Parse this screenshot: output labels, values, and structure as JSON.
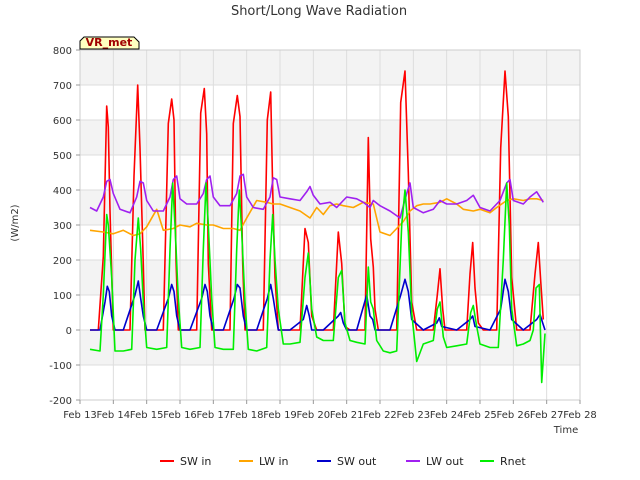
{
  "chart_data": {
    "type": "line",
    "title": "Short/Long Wave Radiation",
    "xlabel": "Time",
    "ylabel": "(W/m2)",
    "badge": "VR_met",
    "xlim": [
      13,
      28
    ],
    "ylim": [
      -200,
      800
    ],
    "x_ticks": [
      {
        "v": 13,
        "label": "Feb 13"
      },
      {
        "v": 14,
        "label": "Feb 14"
      },
      {
        "v": 15,
        "label": "Feb 15"
      },
      {
        "v": 16,
        "label": "Feb 16"
      },
      {
        "v": 17,
        "label": "Feb 17"
      },
      {
        "v": 18,
        "label": "Feb 18"
      },
      {
        "v": 19,
        "label": "Feb 19"
      },
      {
        "v": 20,
        "label": "Feb 20"
      },
      {
        "v": 21,
        "label": "Feb 21"
      },
      {
        "v": 22,
        "label": "Feb 22"
      },
      {
        "v": 23,
        "label": "Feb 23"
      },
      {
        "v": 24,
        "label": "Feb 24"
      },
      {
        "v": 25,
        "label": "Feb 25"
      },
      {
        "v": 26,
        "label": "Feb 26"
      },
      {
        "v": 27,
        "label": "Feb 27"
      },
      {
        "v": 28,
        "label": "Feb 28"
      }
    ],
    "y_ticks": [
      -200,
      -100,
      0,
      100,
      200,
      300,
      400,
      500,
      600,
      700,
      800
    ],
    "grid": true,
    "legend_position": "bottom",
    "series": [
      {
        "name": "SW in",
        "color": "#ff0000",
        "x": [
          13.3,
          13.55,
          13.7,
          13.8,
          13.85,
          13.9,
          14.0,
          14.15,
          14.3,
          14.5,
          14.62,
          14.73,
          14.8,
          14.88,
          14.95,
          15.1,
          15.3,
          15.5,
          15.65,
          15.75,
          15.82,
          15.88,
          15.95,
          16.1,
          16.3,
          16.5,
          16.62,
          16.73,
          16.8,
          16.85,
          16.95,
          17.1,
          17.3,
          17.5,
          17.6,
          17.72,
          17.8,
          17.88,
          17.95,
          18.1,
          18.3,
          18.5,
          18.62,
          18.72,
          18.78,
          18.85,
          18.95,
          19.1,
          19.3,
          19.6,
          19.75,
          19.85,
          19.95,
          20.1,
          20.3,
          20.6,
          20.75,
          20.85,
          20.95,
          21.1,
          21.3,
          21.55,
          21.65,
          21.72,
          21.8,
          21.85,
          21.95,
          22.1,
          22.3,
          22.5,
          22.62,
          22.75,
          22.85,
          22.95,
          23.1,
          23.3,
          23.6,
          23.72,
          23.8,
          23.88,
          23.95,
          24.1,
          24.3,
          24.6,
          24.7,
          24.78,
          24.85,
          24.95,
          25.1,
          25.3,
          25.5,
          25.62,
          25.75,
          25.85,
          25.95,
          26.1,
          26.3,
          26.5,
          26.65,
          26.75,
          26.82,
          26.9
        ],
        "y": [
          0,
          0,
          210,
          640,
          580,
          340,
          0,
          0,
          0,
          0,
          440,
          700,
          520,
          250,
          0,
          0,
          0,
          0,
          590,
          660,
          600,
          200,
          0,
          0,
          0,
          0,
          620,
          690,
          560,
          190,
          0,
          0,
          0,
          0,
          590,
          670,
          610,
          190,
          0,
          0,
          0,
          0,
          600,
          680,
          400,
          150,
          0,
          0,
          0,
          0,
          290,
          250,
          40,
          0,
          0,
          0,
          280,
          190,
          10,
          0,
          0,
          0,
          550,
          260,
          180,
          60,
          0,
          0,
          0,
          0,
          650,
          740,
          450,
          80,
          0,
          0,
          0,
          100,
          175,
          60,
          0,
          0,
          0,
          0,
          160,
          250,
          120,
          20,
          0,
          0,
          0,
          520,
          740,
          610,
          150,
          0,
          0,
          0,
          160,
          250,
          140,
          30
        ]
      },
      {
        "name": "LW in",
        "color": "#ffa500",
        "x": [
          13.3,
          13.7,
          14.0,
          14.3,
          14.6,
          14.8,
          15.0,
          15.3,
          15.5,
          15.8,
          16.0,
          16.3,
          16.5,
          16.8,
          17.0,
          17.3,
          17.6,
          17.8,
          18.0,
          18.3,
          18.6,
          18.8,
          19.0,
          19.3,
          19.6,
          19.9,
          20.1,
          20.3,
          20.5,
          20.7,
          20.9,
          21.2,
          21.5,
          21.8,
          22.0,
          22.3,
          22.5,
          22.7,
          22.9,
          23.1,
          23.3,
          23.5,
          23.8,
          24.0,
          24.3,
          24.5,
          24.8,
          25.0,
          25.3,
          25.5,
          25.8,
          26.0,
          26.3,
          26.5,
          26.7,
          26.9
        ],
        "y": [
          285,
          280,
          275,
          285,
          270,
          275,
          295,
          345,
          285,
          290,
          300,
          295,
          305,
          300,
          300,
          290,
          290,
          285,
          320,
          370,
          365,
          360,
          360,
          350,
          340,
          320,
          350,
          330,
          355,
          360,
          355,
          350,
          365,
          360,
          280,
          270,
          290,
          310,
          340,
          355,
          360,
          360,
          365,
          375,
          360,
          345,
          340,
          345,
          335,
          350,
          370,
          375,
          370,
          375,
          375,
          370
        ]
      },
      {
        "name": "SW out",
        "color": "#0000cc",
        "x": [
          13.3,
          13.6,
          13.75,
          13.82,
          13.88,
          13.95,
          14.05,
          14.3,
          14.65,
          14.75,
          14.82,
          14.9,
          15.0,
          15.3,
          15.65,
          15.75,
          15.82,
          15.9,
          16.0,
          16.3,
          16.65,
          16.75,
          16.82,
          16.9,
          17.0,
          17.3,
          17.62,
          17.72,
          17.8,
          17.9,
          18.0,
          18.3,
          18.62,
          18.72,
          18.8,
          18.88,
          18.95,
          19.3,
          19.7,
          19.8,
          19.88,
          19.95,
          20.3,
          20.75,
          20.82,
          20.9,
          21.0,
          21.3,
          21.6,
          21.7,
          21.78,
          21.85,
          22.0,
          22.3,
          22.62,
          22.75,
          22.85,
          22.95,
          23.3,
          23.7,
          23.78,
          23.85,
          24.3,
          24.7,
          24.78,
          24.85,
          25.3,
          25.62,
          25.75,
          25.85,
          25.95,
          26.3,
          26.7,
          26.8,
          26.88,
          26.95
        ],
        "y": [
          0,
          0,
          80,
          125,
          110,
          40,
          0,
          0,
          100,
          140,
          90,
          40,
          0,
          0,
          90,
          130,
          110,
          40,
          0,
          0,
          90,
          130,
          110,
          40,
          0,
          0,
          90,
          130,
          120,
          40,
          0,
          0,
          90,
          130,
          90,
          40,
          0,
          0,
          30,
          70,
          40,
          0,
          0,
          40,
          50,
          20,
          0,
          0,
          100,
          40,
          30,
          0,
          0,
          0,
          100,
          145,
          110,
          30,
          0,
          20,
          35,
          10,
          0,
          30,
          40,
          10,
          0,
          60,
          145,
          110,
          30,
          0,
          30,
          45,
          20,
          0
        ]
      },
      {
        "name": "LW out",
        "color": "#a020f0",
        "x": [
          13.3,
          13.5,
          13.7,
          13.8,
          13.9,
          14.0,
          14.2,
          14.5,
          14.7,
          14.8,
          14.9,
          15.0,
          15.2,
          15.5,
          15.7,
          15.8,
          15.9,
          16.0,
          16.2,
          16.5,
          16.7,
          16.8,
          16.9,
          17.0,
          17.2,
          17.5,
          17.7,
          17.8,
          17.9,
          18.0,
          18.2,
          18.5,
          18.7,
          18.8,
          18.9,
          19.0,
          19.3,
          19.6,
          19.8,
          19.9,
          20.0,
          20.2,
          20.5,
          20.7,
          20.9,
          21.0,
          21.3,
          21.5,
          21.7,
          21.8,
          22.0,
          22.3,
          22.6,
          22.8,
          22.9,
          23.0,
          23.3,
          23.6,
          23.8,
          24.0,
          24.3,
          24.6,
          24.8,
          25.0,
          25.3,
          25.6,
          25.8,
          25.9,
          26.0,
          26.3,
          26.5,
          26.7,
          26.9
        ],
        "y": [
          350,
          340,
          380,
          425,
          430,
          390,
          345,
          335,
          380,
          425,
          420,
          370,
          340,
          340,
          380,
          430,
          440,
          375,
          360,
          360,
          390,
          430,
          440,
          380,
          355,
          355,
          390,
          440,
          445,
          380,
          350,
          345,
          380,
          435,
          430,
          380,
          375,
          370,
          395,
          410,
          385,
          360,
          365,
          350,
          370,
          380,
          375,
          365,
          350,
          370,
          355,
          340,
          320,
          390,
          420,
          350,
          335,
          345,
          370,
          360,
          360,
          370,
          385,
          350,
          340,
          370,
          420,
          430,
          370,
          360,
          380,
          395,
          365
        ]
      },
      {
        "name": "Rnet",
        "color": "#00ee00",
        "x": [
          13.3,
          13.6,
          13.7,
          13.8,
          13.85,
          13.95,
          14.05,
          14.3,
          14.55,
          14.65,
          14.75,
          14.82,
          14.9,
          15.0,
          15.3,
          15.6,
          15.7,
          15.78,
          15.85,
          15.95,
          16.05,
          16.3,
          16.6,
          16.7,
          16.78,
          16.85,
          16.95,
          17.05,
          17.3,
          17.6,
          17.7,
          17.78,
          17.85,
          17.95,
          18.05,
          18.3,
          18.6,
          18.7,
          18.78,
          18.85,
          18.95,
          19.1,
          19.3,
          19.6,
          19.75,
          19.85,
          19.95,
          20.1,
          20.3,
          20.6,
          20.75,
          20.85,
          20.95,
          21.1,
          21.3,
          21.55,
          21.65,
          21.72,
          21.8,
          21.9,
          22.1,
          22.3,
          22.5,
          22.65,
          22.75,
          22.85,
          22.95,
          23.1,
          23.3,
          23.6,
          23.72,
          23.8,
          23.9,
          24.0,
          24.3,
          24.6,
          24.72,
          24.8,
          24.9,
          25.0,
          25.3,
          25.55,
          25.7,
          25.8,
          25.88,
          25.95,
          26.1,
          26.3,
          26.5,
          26.6,
          26.68,
          26.78,
          26.85,
          26.95
        ],
        "y": [
          -55,
          -60,
          100,
          330,
          300,
          150,
          -60,
          -60,
          -55,
          200,
          320,
          230,
          80,
          -50,
          -55,
          -50,
          230,
          420,
          300,
          90,
          -50,
          -55,
          -50,
          230,
          420,
          300,
          90,
          -50,
          -55,
          -55,
          230,
          400,
          280,
          80,
          -55,
          -60,
          -50,
          200,
          330,
          200,
          60,
          -40,
          -40,
          -35,
          150,
          220,
          60,
          -20,
          -30,
          -30,
          150,
          170,
          20,
          -30,
          -35,
          -40,
          180,
          80,
          60,
          -30,
          -60,
          -65,
          -60,
          300,
          400,
          280,
          50,
          -90,
          -40,
          -30,
          60,
          80,
          -20,
          -50,
          -45,
          -40,
          50,
          70,
          10,
          -40,
          -50,
          -50,
          200,
          420,
          300,
          60,
          -45,
          -40,
          -30,
          0,
          120,
          130,
          -150,
          -10
        ]
      }
    ]
  },
  "legend": [
    {
      "name": "SW in",
      "color": "#ff0000"
    },
    {
      "name": "LW in",
      "color": "#ffa500"
    },
    {
      "name": "SW out",
      "color": "#0000cc"
    },
    {
      "name": "LW out",
      "color": "#a020f0"
    },
    {
      "name": "Rnet",
      "color": "#00ee00"
    }
  ]
}
